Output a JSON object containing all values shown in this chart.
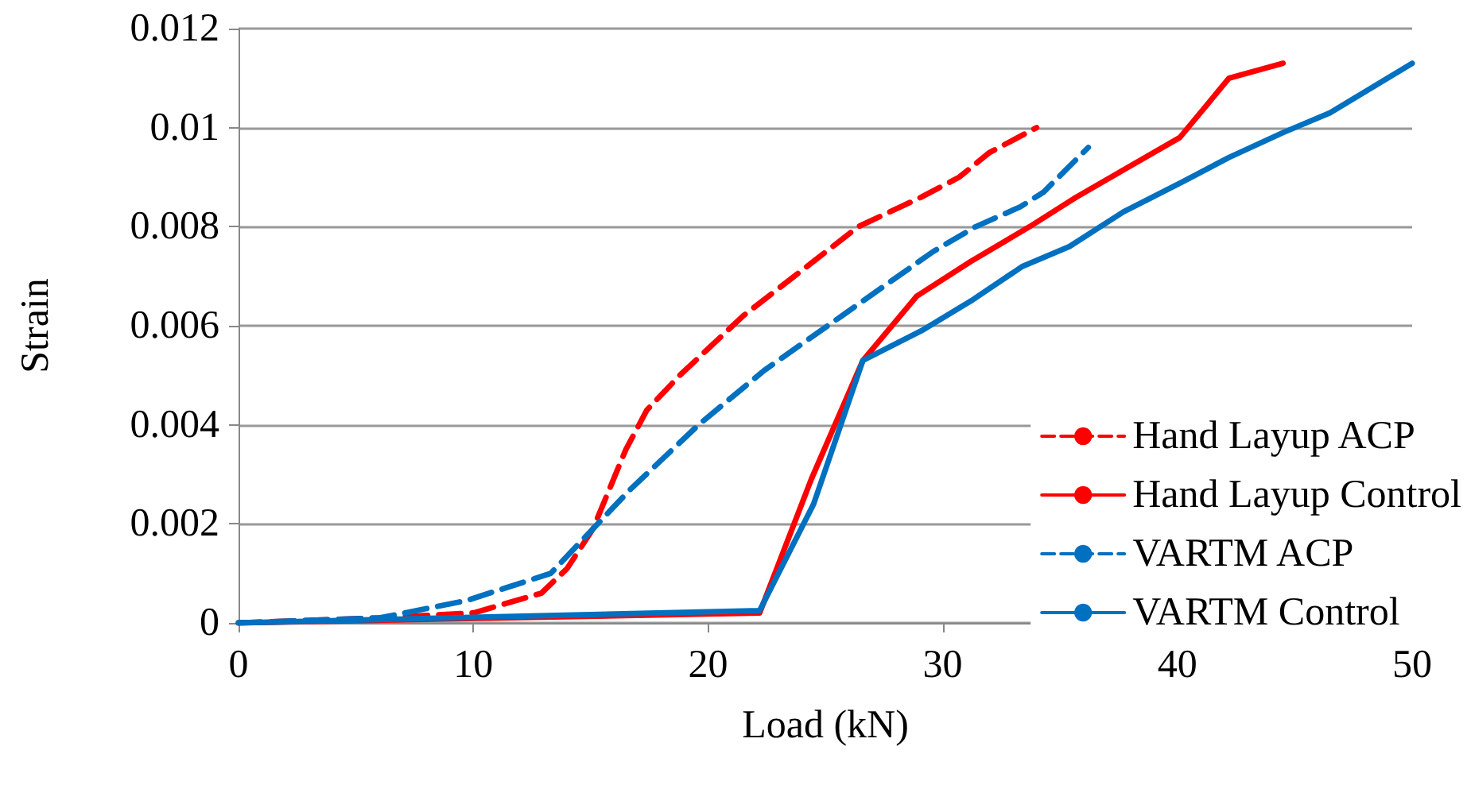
{
  "chart_data": {
    "type": "line",
    "xlabel": "Load (kN)",
    "ylabel": "Strain",
    "xlim": [
      0,
      50
    ],
    "xticks": [
      0,
      10,
      20,
      30,
      40,
      50
    ],
    "ylim": [
      0,
      0.012
    ],
    "yticks": [
      0,
      0.002,
      0.004,
      0.006,
      0.008,
      0.01,
      0.012
    ],
    "grid": "y",
    "legend": "bottom right",
    "marker": "none",
    "series": [
      {
        "name": "Hand Layup ACP",
        "color": "#ff0000",
        "line_style": "dashed",
        "x": [
          0,
          6,
          10,
          12.9,
          14,
          15.1,
          16.5,
          17.4,
          18.8,
          21.5,
          26.4,
          29.1,
          30.7,
          32,
          34
        ],
        "values": [
          0,
          0.0001,
          0.0002,
          0.0006,
          0.0011,
          0.0019,
          0.0035,
          0.0043,
          0.005,
          0.0062,
          0.008,
          0.0086,
          0.009,
          0.0095,
          0.01
        ]
      },
      {
        "name": "Hand Layup Control",
        "color": "#ff0000",
        "line_style": "solid",
        "x": [
          0,
          22.2,
          24.4,
          26.6,
          28.9,
          31.2,
          33.7,
          35.7,
          37.9,
          40.1,
          42.2,
          44.5
        ],
        "values": [
          0,
          0.0002,
          0.0029,
          0.0053,
          0.0066,
          0.0073,
          0.008,
          0.0086,
          0.0092,
          0.0098,
          0.011,
          0.0113
        ]
      },
      {
        "name": "VARTM ACP",
        "color": "#0070c0",
        "line_style": "dashed",
        "x": [
          0,
          6,
          9.7,
          13.3,
          15.1,
          16.7,
          19.6,
          22.4,
          25.7,
          26.6,
          29.6,
          31.4,
          33.3,
          34.3,
          36.2
        ],
        "values": [
          0,
          0.0001,
          0.00045,
          0.001,
          0.0019,
          0.0027,
          0.004,
          0.0051,
          0.0062,
          0.0065,
          0.0075,
          0.008,
          0.0084,
          0.0087,
          0.0096
        ]
      },
      {
        "name": "VARTM Control",
        "color": "#0070c0",
        "line_style": "solid",
        "x": [
          0,
          22.2,
          24.5,
          26.6,
          29.1,
          31.2,
          33.4,
          35.4,
          37.7,
          40.2,
          42.2,
          44.5,
          46.5,
          50
        ],
        "values": [
          0,
          0.00025,
          0.0024,
          0.0053,
          0.0059,
          0.0065,
          0.0072,
          0.0076,
          0.0083,
          0.0089,
          0.0094,
          0.0099,
          0.0103,
          0.0113
        ]
      }
    ]
  }
}
